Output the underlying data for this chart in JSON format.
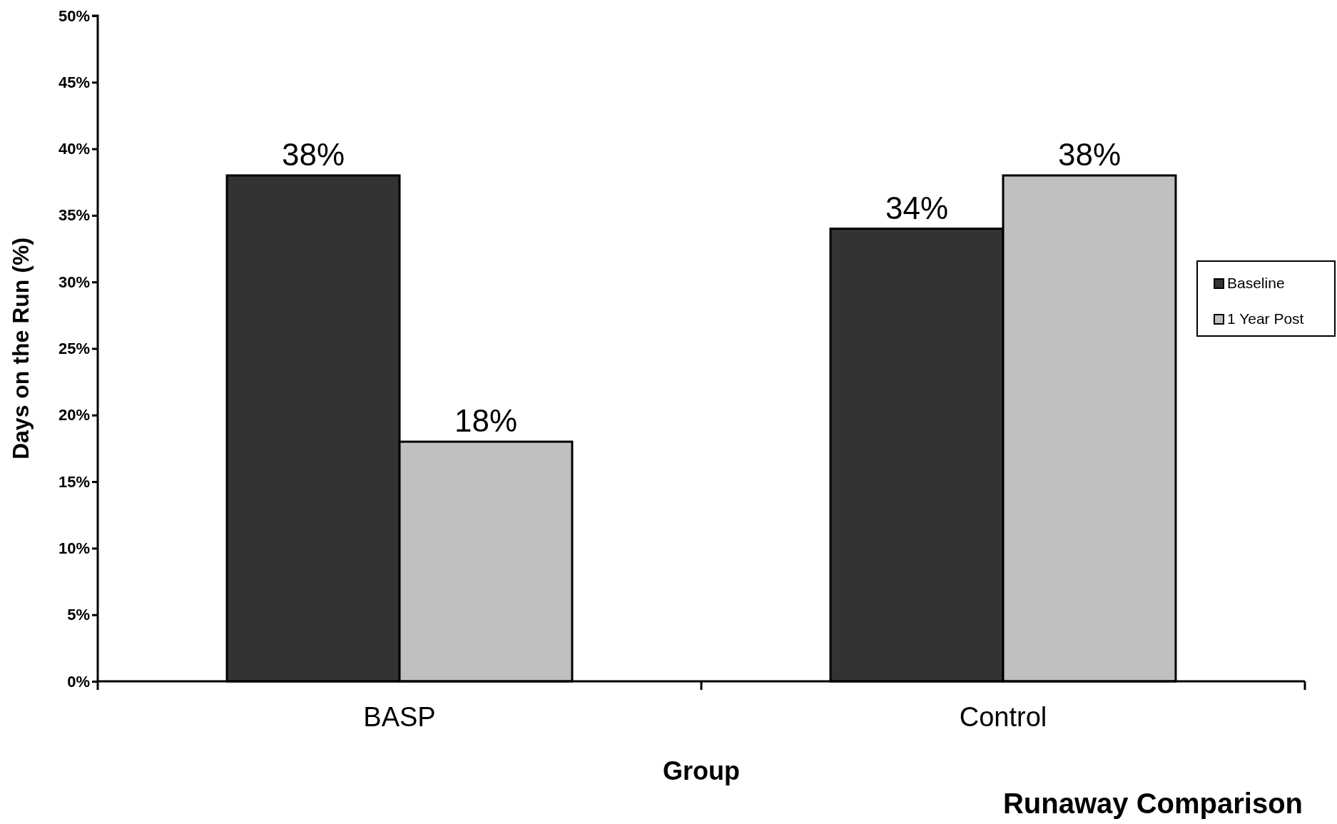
{
  "chart_data": {
    "type": "bar",
    "title": "Runaway Comparison",
    "xlabel": "Group",
    "ylabel": "Days on the Run (%)",
    "categories": [
      "BASP",
      "Control"
    ],
    "series": [
      {
        "name": "Baseline",
        "color": "#333333",
        "values": [
          38,
          34
        ],
        "value_labels": [
          "38%",
          "34%"
        ]
      },
      {
        "name": "1 Year Post",
        "color": "#c0c0c0",
        "values": [
          18,
          38
        ],
        "value_labels": [
          "18%",
          "38%"
        ]
      }
    ],
    "ylim": [
      0,
      50
    ],
    "yticks": [
      {
        "value": 0,
        "label": "0%"
      },
      {
        "value": 5,
        "label": "5%"
      },
      {
        "value": 10,
        "label": "10%"
      },
      {
        "value": 15,
        "label": "15%"
      },
      {
        "value": 20,
        "label": "20%"
      },
      {
        "value": 25,
        "label": "25%"
      },
      {
        "value": 30,
        "label": "30%"
      },
      {
        "value": 35,
        "label": "35%"
      },
      {
        "value": 40,
        "label": "40%"
      },
      {
        "value": 45,
        "label": "45%"
      },
      {
        "value": 50,
        "label": "50%"
      }
    ],
    "grid": false,
    "legend": "right"
  }
}
